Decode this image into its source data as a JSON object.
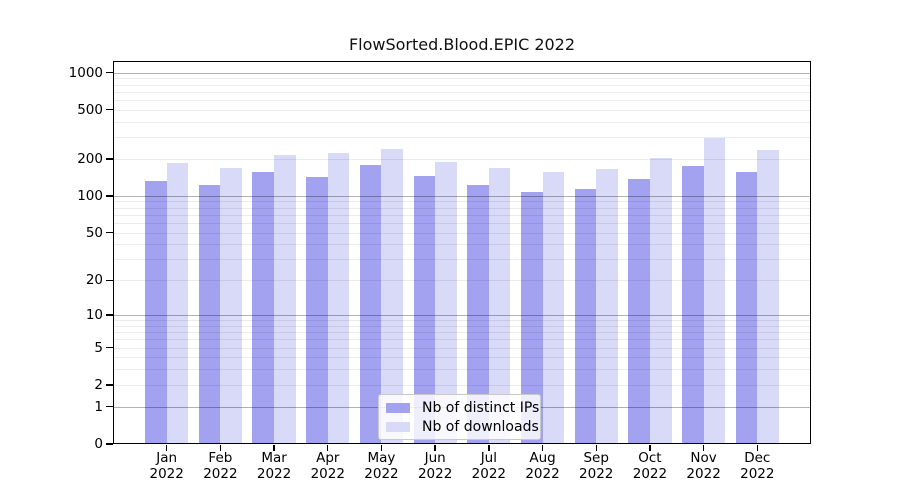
{
  "title": "FlowSorted.Blood.EPIC 2022",
  "chart_data": {
    "type": "bar",
    "title": "FlowSorted.Blood.EPIC 2022",
    "xlabel": "",
    "ylabel": "",
    "scale": "log1p",
    "ylim": [
      0,
      1240
    ],
    "yticks": [
      0,
      1,
      2,
      5,
      10,
      20,
      50,
      100,
      200,
      500,
      1000
    ],
    "grid": "horizontal major and minor log gridlines",
    "legend_position": "bottom-center-inside",
    "months": [
      "Jan",
      "Feb",
      "Mar",
      "Apr",
      "May",
      "Jun",
      "Jul",
      "Aug",
      "Sep",
      "Oct",
      "Nov",
      "Dec"
    ],
    "year": "2022",
    "series": [
      {
        "name": "Nb of distinct IPs",
        "color": "#a2a2f0",
        "values": [
          132,
          122,
          156,
          142,
          177,
          144,
          122,
          108,
          113,
          136,
          176,
          155
        ]
      },
      {
        "name": "Nb of downloads",
        "color": "#d9d9f8",
        "values": [
          186,
          170,
          214,
          224,
          242,
          190,
          168,
          157,
          167,
          204,
          293,
          238
        ]
      }
    ],
    "colors": {
      "major_grid": "rgba(0,0,0,0.30)",
      "minor_grid": "rgba(0,0,0,0.075)",
      "axis": "#000000"
    }
  }
}
